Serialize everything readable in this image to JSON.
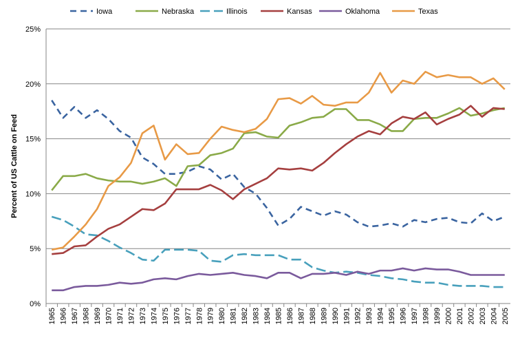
{
  "chart_data": {
    "type": "line",
    "ylabel": "Percent of US Cattle on Feed",
    "xlabel": "",
    "ylim": [
      0,
      25
    ],
    "y_ticks": [
      "0%",
      "5%",
      "10%",
      "15%",
      "20%",
      "25%"
    ],
    "y_tick_values": [
      0,
      5,
      10,
      15,
      20,
      25
    ],
    "grid": "horizontal",
    "legend_position": "top",
    "categories": [
      "1965",
      "1966",
      "1967",
      "1968",
      "1969",
      "1970",
      "1971",
      "1972",
      "1973",
      "1974",
      "1975",
      "1976",
      "1977",
      "1978",
      "1979",
      "1980",
      "1981",
      "1982",
      "1983",
      "1984",
      "1985",
      "1986",
      "1987",
      "1988",
      "1989",
      "1990",
      "1991",
      "1992",
      "1993",
      "1994",
      "1995",
      "1996",
      "1997",
      "1998",
      "1999",
      "2000",
      "2001",
      "2002",
      "2003",
      "2004",
      "2005"
    ],
    "series": [
      {
        "name": "Iowa",
        "color": "#3A64A0",
        "dash": "dash",
        "values": [
          18.5,
          16.9,
          17.9,
          16.9,
          17.6,
          16.8,
          15.7,
          15.1,
          13.3,
          12.7,
          11.8,
          11.8,
          12.0,
          12.5,
          12.2,
          11.3,
          11.8,
          10.6,
          10.0,
          8.7,
          7.1,
          7.7,
          8.8,
          8.4,
          8.0,
          8.4,
          8.1,
          7.4,
          7.0,
          7.1,
          7.3,
          7.0,
          7.6,
          7.4,
          7.7,
          7.8,
          7.4,
          7.3,
          8.2,
          7.5,
          7.9
        ]
      },
      {
        "name": "Nebraska",
        "color": "#8AAA48",
        "dash": "solid",
        "values": [
          10.3,
          11.6,
          11.6,
          11.8,
          11.4,
          11.2,
          11.1,
          11.1,
          10.9,
          11.1,
          11.4,
          10.7,
          12.5,
          12.6,
          13.5,
          13.7,
          14.1,
          15.5,
          15.6,
          15.2,
          15.1,
          16.2,
          16.5,
          16.9,
          17.0,
          17.7,
          17.7,
          16.7,
          16.7,
          16.3,
          15.7,
          15.7,
          16.8,
          16.9,
          16.9,
          17.3,
          17.8,
          17.1,
          17.3,
          17.6,
          17.8
        ]
      },
      {
        "name": "Illinois",
        "color": "#48A0BC",
        "dash": "longdash",
        "values": [
          7.9,
          7.6,
          7.0,
          6.3,
          6.2,
          5.7,
          5.1,
          4.6,
          4.0,
          3.9,
          4.9,
          4.9,
          4.9,
          4.8,
          3.9,
          3.8,
          4.4,
          4.5,
          4.4,
          4.4,
          4.4,
          4.0,
          4.0,
          3.3,
          3.0,
          2.8,
          2.9,
          2.8,
          2.6,
          2.5,
          2.3,
          2.2,
          2.0,
          1.9,
          1.9,
          1.7,
          1.6,
          1.6,
          1.6,
          1.5,
          1.5
        ]
      },
      {
        "name": "Kansas",
        "color": "#A53F3F",
        "dash": "solid",
        "values": [
          4.5,
          4.6,
          5.2,
          5.3,
          6.1,
          6.8,
          7.2,
          7.9,
          8.6,
          8.5,
          9.1,
          10.4,
          10.4,
          10.4,
          10.8,
          10.3,
          9.5,
          10.4,
          10.9,
          11.4,
          12.3,
          12.2,
          12.3,
          12.1,
          12.8,
          13.7,
          14.5,
          15.2,
          15.7,
          15.4,
          16.4,
          17.0,
          16.8,
          17.4,
          16.3,
          16.8,
          17.2,
          18.0,
          17.0,
          17.8,
          17.7
        ]
      },
      {
        "name": "Oklahoma",
        "color": "#7A5A9C",
        "dash": "solid",
        "values": [
          1.2,
          1.2,
          1.5,
          1.6,
          1.6,
          1.7,
          1.9,
          1.8,
          1.9,
          2.2,
          2.3,
          2.2,
          2.5,
          2.7,
          2.6,
          2.7,
          2.8,
          2.6,
          2.5,
          2.3,
          2.8,
          2.8,
          2.3,
          2.7,
          2.7,
          2.8,
          2.6,
          2.9,
          2.7,
          3.0,
          3.0,
          3.2,
          3.0,
          3.2,
          3.1,
          3.1,
          2.9,
          2.6,
          2.6,
          2.6,
          2.6
        ]
      },
      {
        "name": "Texas",
        "color": "#E89A46",
        "dash": "solid",
        "values": [
          4.9,
          5.1,
          6.1,
          7.2,
          8.6,
          10.7,
          11.5,
          12.8,
          15.5,
          16.2,
          13.1,
          14.5,
          13.6,
          13.7,
          15.0,
          16.1,
          15.8,
          15.6,
          15.9,
          16.8,
          18.6,
          18.7,
          18.2,
          18.9,
          18.1,
          18.0,
          18.3,
          18.3,
          19.2,
          21.0,
          19.2,
          20.3,
          20.0,
          21.1,
          20.6,
          20.8,
          20.6,
          20.6,
          20.0,
          20.5,
          19.5
        ]
      }
    ]
  }
}
